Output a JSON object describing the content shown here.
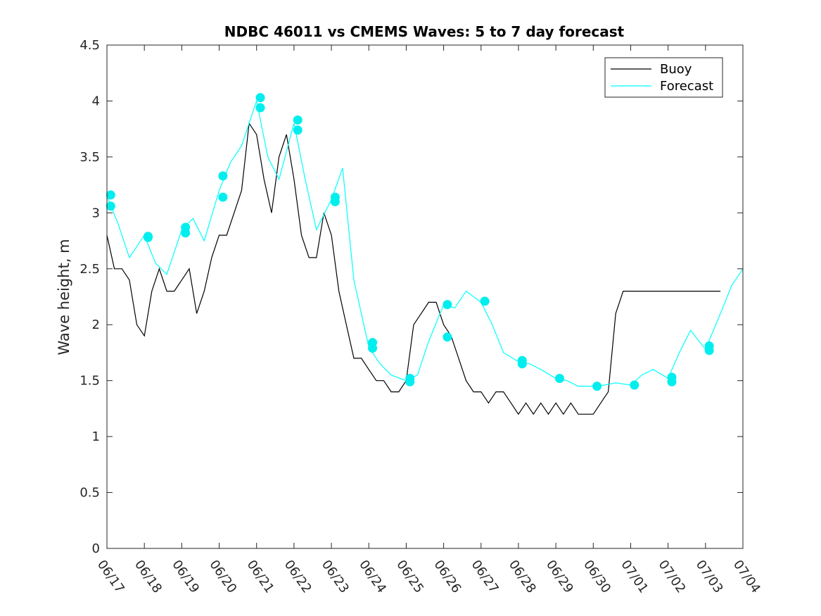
{
  "chart_data": {
    "type": "line",
    "title": "NDBC 46011 vs CMEMS Waves: 5 to 7 day forecast",
    "xlabel": "",
    "ylabel": "Wave height, m",
    "ylim": [
      0,
      4.5
    ],
    "yticks": [
      "0",
      "0.5",
      "1",
      "1.5",
      "2",
      "2.5",
      "3",
      "3.5",
      "4",
      "4.5"
    ],
    "xlim": [
      "06/17",
      "07/04"
    ],
    "xticks": [
      "06/17",
      "06/18",
      "06/19",
      "06/20",
      "06/21",
      "06/22",
      "06/23",
      "06/24",
      "06/25",
      "06/26",
      "06/27",
      "06/28",
      "06/29",
      "06/30",
      "07/01",
      "07/02",
      "07/03",
      "07/04"
    ],
    "legend_position": "top-right",
    "colors": {
      "buoy": "#000000",
      "forecast": "#00ffff",
      "marker": "#00eeee"
    },
    "series": [
      {
        "name": "Buoy",
        "x": [
          0,
          0.2,
          0.4,
          0.6,
          0.8,
          1.0,
          1.2,
          1.4,
          1.6,
          1.8,
          2.0,
          2.2,
          2.4,
          2.6,
          2.8,
          3.0,
          3.2,
          3.4,
          3.6,
          3.8,
          4.0,
          4.2,
          4.4,
          4.6,
          4.8,
          5.0,
          5.2,
          5.4,
          5.6,
          5.8,
          6.0,
          6.2,
          6.4,
          6.6,
          6.8,
          7.0,
          7.2,
          7.4,
          7.6,
          7.8,
          8.0,
          8.2,
          8.4,
          8.6,
          8.8,
          9.0,
          9.2,
          9.4,
          9.6,
          9.8,
          10.0,
          10.2,
          10.4,
          10.6,
          10.8,
          11.0,
          11.2,
          11.4,
          11.6,
          11.8,
          12.0,
          12.2,
          12.4,
          12.6,
          12.8,
          13.0,
          13.2,
          13.4,
          13.6,
          13.8,
          14.0,
          14.2,
          14.4,
          14.6,
          14.8,
          15.0,
          15.2,
          15.4,
          15.6,
          15.8,
          16.0,
          16.2,
          16.4
        ],
        "values": [
          2.8,
          2.5,
          2.5,
          2.4,
          2.0,
          1.9,
          2.3,
          2.5,
          2.3,
          2.3,
          2.4,
          2.5,
          2.1,
          2.3,
          2.6,
          2.8,
          2.8,
          3.0,
          3.2,
          3.8,
          3.7,
          3.3,
          3.0,
          3.5,
          3.7,
          3.3,
          2.8,
          2.6,
          2.6,
          3.0,
          2.8,
          2.3,
          2.0,
          1.7,
          1.7,
          1.6,
          1.5,
          1.5,
          1.4,
          1.4,
          1.5,
          2.0,
          2.1,
          2.2,
          2.2,
          2.0,
          1.9,
          1.7,
          1.5,
          1.4,
          1.4,
          1.3,
          1.4,
          1.4,
          1.3,
          1.2,
          1.3,
          1.2,
          1.3,
          1.2,
          1.3,
          1.2,
          1.3,
          1.2,
          1.2,
          1.2,
          1.3,
          1.4,
          2.1,
          2.3,
          2.3,
          2.3,
          2.3,
          2.3,
          2.3,
          2.3,
          2.3,
          2.3,
          2.3,
          2.3,
          2.3,
          2.3,
          2.3
        ]
      },
      {
        "name": "Forecast",
        "x": [
          0,
          0.3,
          0.6,
          1.0,
          1.3,
          1.6,
          2.0,
          2.3,
          2.6,
          3.0,
          3.3,
          3.6,
          4.0,
          4.3,
          4.6,
          5.0,
          5.3,
          5.6,
          6.0,
          6.3,
          6.6,
          7.0,
          7.3,
          7.6,
          8.0,
          8.3,
          8.6,
          9.0,
          9.3,
          9.6,
          10.0,
          10.3,
          10.6,
          11.0,
          11.3,
          11.6,
          12.0,
          12.3,
          12.6,
          13.0,
          13.3,
          13.6,
          14.0,
          14.3,
          14.6,
          15.0,
          15.3,
          15.6,
          16.0,
          16.4,
          16.7,
          17.0
        ],
        "values": [
          3.15,
          2.9,
          2.6,
          2.8,
          2.55,
          2.45,
          2.85,
          2.95,
          2.75,
          3.2,
          3.45,
          3.6,
          4.0,
          3.5,
          3.3,
          3.8,
          3.3,
          2.85,
          3.12,
          3.4,
          2.4,
          1.8,
          1.65,
          1.55,
          1.5,
          1.55,
          1.85,
          2.18,
          2.15,
          2.3,
          2.2,
          2.0,
          1.75,
          1.67,
          1.65,
          1.6,
          1.52,
          1.5,
          1.45,
          1.45,
          1.46,
          1.48,
          1.46,
          1.55,
          1.6,
          1.52,
          1.75,
          1.95,
          1.78,
          2.1,
          2.35,
          2.5
        ]
      }
    ],
    "markers": {
      "x": [
        0.1,
        0.1,
        1.1,
        1.1,
        2.1,
        2.1,
        3.1,
        3.1,
        4.1,
        4.1,
        5.1,
        5.1,
        6.1,
        6.1,
        7.1,
        7.1,
        8.1,
        8.1,
        9.1,
        9.1,
        10.1,
        11.1,
        11.1,
        12.1,
        13.1,
        14.1,
        15.1,
        15.1,
        16.1,
        16.1
      ],
      "values": [
        3.16,
        3.06,
        2.79,
        2.78,
        2.87,
        2.82,
        3.33,
        3.14,
        4.03,
        3.94,
        3.83,
        3.74,
        3.14,
        3.1,
        1.84,
        1.79,
        1.52,
        1.49,
        2.18,
        1.89,
        2.21,
        1.68,
        1.65,
        1.52,
        1.45,
        1.46,
        1.53,
        1.49,
        1.81,
        1.77
      ]
    }
  }
}
